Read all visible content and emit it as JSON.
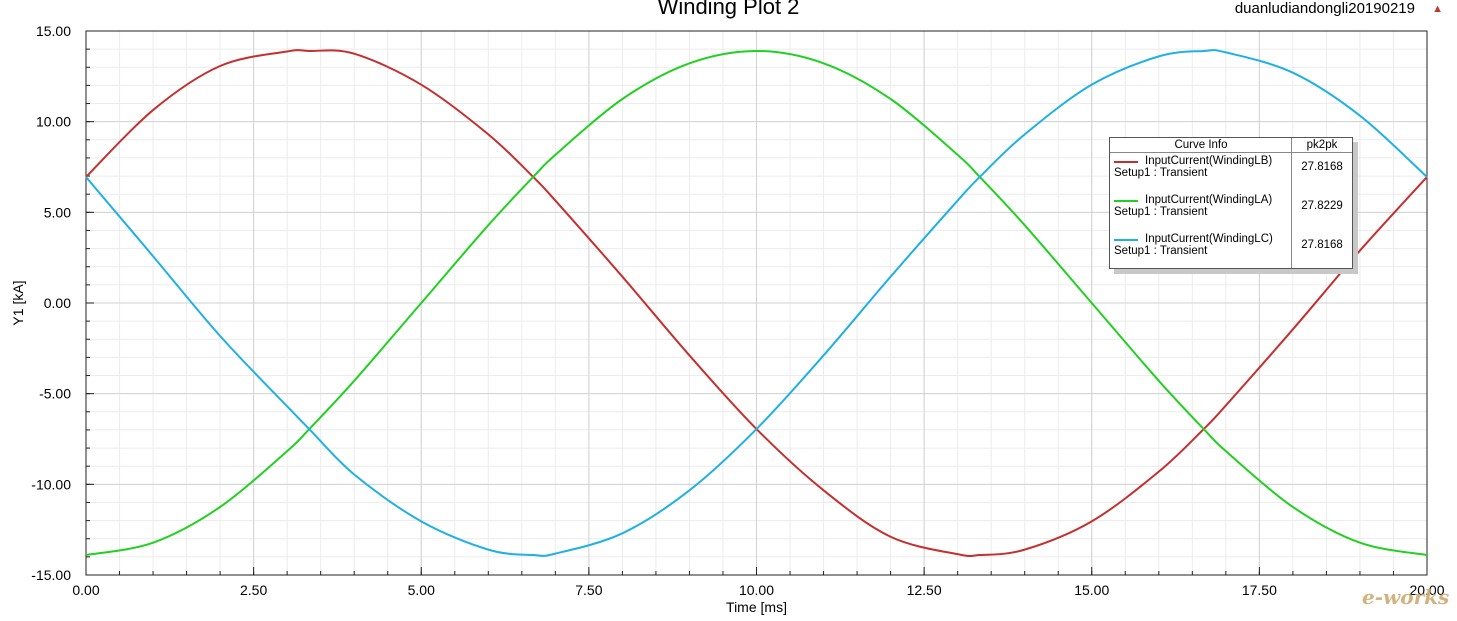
{
  "header": {
    "project_name": "duanludiandongli20190219"
  },
  "legend": {
    "header_curve": "Curve Info",
    "header_value": "pk2pk",
    "rows": [
      {
        "name": "InputCurrent(WindingLB)",
        "setup": "Setup1 : Transient",
        "value": "27.8168",
        "color": "#c43030"
      },
      {
        "name": "InputCurrent(WindingLA)",
        "setup": "Setup1 : Transient",
        "value": "27.8229",
        "color": "#22d022"
      },
      {
        "name": "InputCurrent(WindingLC)",
        "setup": "Setup1 : Transient",
        "value": "27.8168",
        "color": "#1fb0e6"
      }
    ]
  },
  "watermark": "e-works",
  "chart_data": {
    "type": "line",
    "title": "Winding Plot 2",
    "xlabel": "Time [ms]",
    "ylabel": "Y1 [kA]",
    "xlim": [
      0,
      20
    ],
    "ylim": [
      -15,
      15
    ],
    "x_ticks": [
      "0.00",
      "2.50",
      "5.00",
      "7.50",
      "10.00",
      "12.50",
      "15.00",
      "17.50",
      "20.00"
    ],
    "y_ticks": [
      "15.00",
      "10.00",
      "5.00",
      "0.00",
      "-5.00",
      "-10.00",
      "-15.00"
    ],
    "grid": true,
    "legend_position": "right",
    "x": [
      0,
      1,
      2,
      3,
      3.33,
      4,
      5,
      6,
      6.67,
      7,
      8,
      9,
      10,
      11,
      12,
      13,
      13.33,
      14,
      15,
      16,
      16.67,
      17,
      18,
      19,
      20
    ],
    "series": [
      {
        "name": "InputCurrent(WindingLB)",
        "color": "#c43030",
        "values": [
          6.95,
          10.64,
          13.07,
          13.87,
          13.9,
          13.75,
          12.04,
          9.3,
          6.95,
          5.65,
          1.45,
          -2.89,
          -6.95,
          -10.33,
          -12.89,
          -13.85,
          -13.9,
          -13.6,
          -12.04,
          -9.3,
          -6.95,
          -5.65,
          -1.45,
          2.89,
          6.95
        ]
      },
      {
        "name": "InputCurrent(WindingLA)",
        "color": "#22d022",
        "values": [
          -13.9,
          -13.22,
          -11.25,
          -8.17,
          -6.95,
          -4.29,
          0,
          4.29,
          6.95,
          8.17,
          11.25,
          13.22,
          13.9,
          13.22,
          11.25,
          8.17,
          6.95,
          4.29,
          0,
          -4.29,
          -6.95,
          -8.17,
          -11.25,
          -13.22,
          -13.9
        ]
      },
      {
        "name": "InputCurrent(WindingLC)",
        "color": "#1fb0e6",
        "values": [
          6.95,
          2.58,
          -1.82,
          -5.7,
          -6.95,
          -9.46,
          -12.04,
          -13.6,
          -13.9,
          -13.82,
          -12.7,
          -10.33,
          -6.95,
          -2.89,
          1.45,
          5.65,
          6.95,
          9.3,
          12.04,
          13.6,
          13.9,
          13.82,
          12.7,
          10.33,
          6.95
        ]
      }
    ]
  }
}
